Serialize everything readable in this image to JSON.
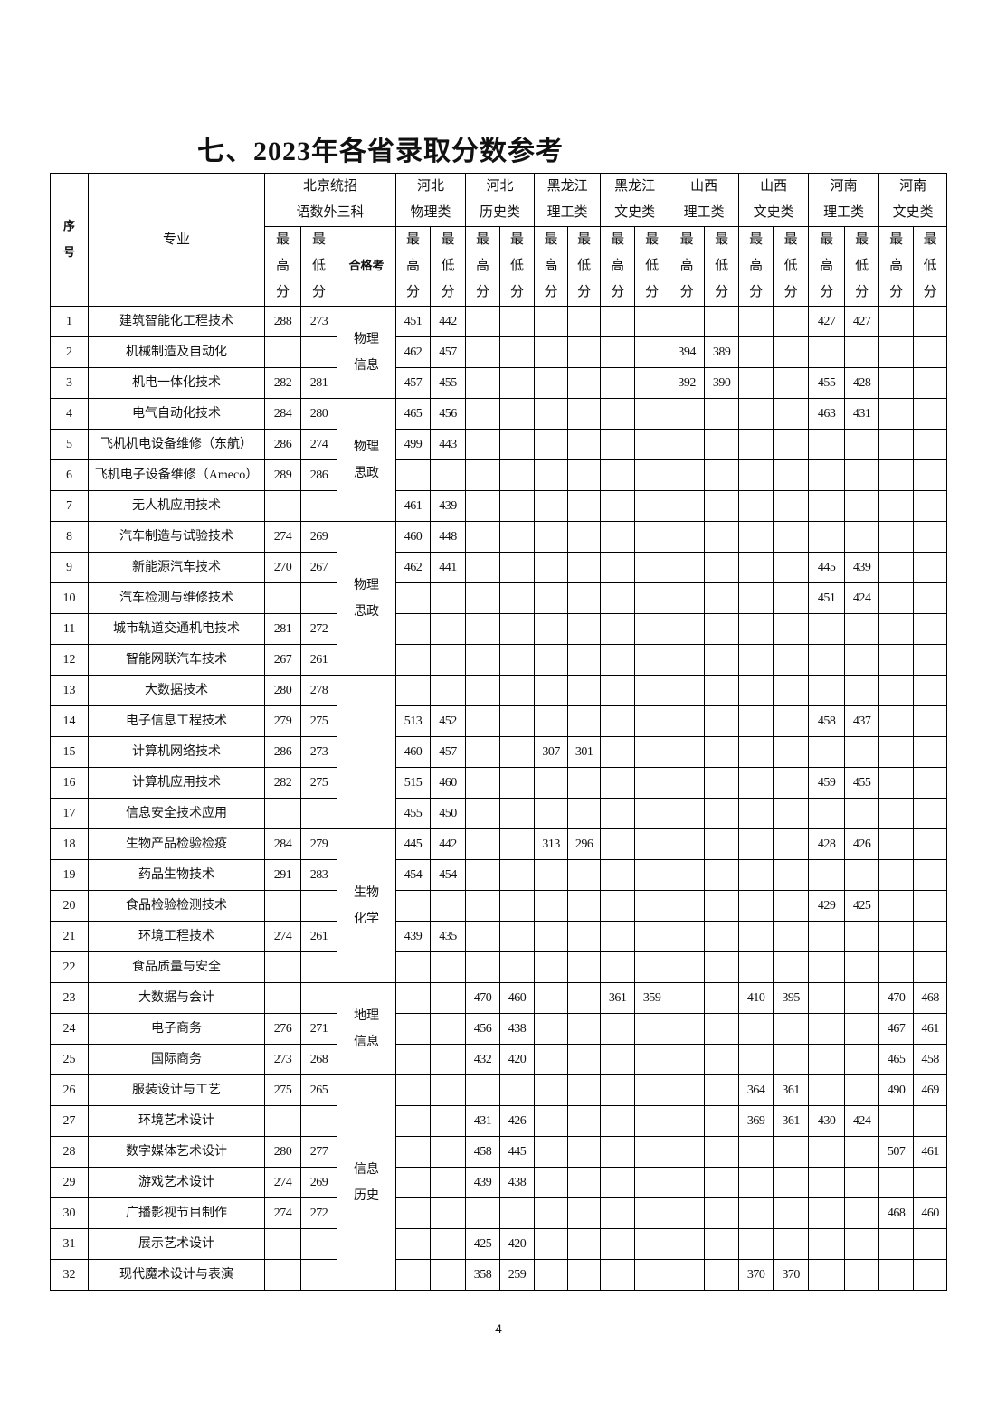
{
  "title": "七、2023年各省录取分数参考",
  "page_number": "4",
  "header": {
    "no": [
      "序",
      "号"
    ],
    "major": "专业",
    "beijing": [
      "北京统招",
      "语数外三科"
    ],
    "qualification": "合格考",
    "max_label": [
      "最",
      "高",
      "分"
    ],
    "min_label": [
      "最",
      "低",
      "分"
    ],
    "provinces": [
      [
        "河北",
        "物理类"
      ],
      [
        "河北",
        "历史类"
      ],
      [
        "黑龙江",
        "理工类"
      ],
      [
        "黑龙江",
        "文史类"
      ],
      [
        "山西",
        "理工类"
      ],
      [
        "山西",
        "文史类"
      ],
      [
        "河南",
        "理工类"
      ],
      [
        "河南",
        "文史类"
      ]
    ]
  },
  "qual_groups": [
    {
      "lines": [
        "物理",
        "信息"
      ],
      "rows": 3
    },
    {
      "lines": [
        "物理",
        "思政"
      ],
      "rows": 4
    },
    {
      "lines": [
        "物理",
        "思政"
      ],
      "rows": 5
    },
    {
      "lines": [],
      "rows": 5
    },
    {
      "lines": [
        "生物",
        "化学"
      ],
      "rows": 5
    },
    {
      "lines": [
        "地理",
        "信息"
      ],
      "rows": 3
    },
    {
      "lines": [
        "信息",
        "历史"
      ],
      "rows": 7
    }
  ],
  "rows": [
    {
      "no": "1",
      "major": "建筑智能化工程技术",
      "scores": [
        "288",
        "273",
        "451",
        "442",
        "",
        "",
        "",
        "",
        "",
        "",
        "",
        "",
        "",
        "",
        "427",
        "427",
        "",
        ""
      ]
    },
    {
      "no": "2",
      "major": "机械制造及自动化",
      "scores": [
        "",
        "",
        "462",
        "457",
        "",
        "",
        "",
        "",
        "",
        "",
        "394",
        "389",
        "",
        "",
        "",
        "",
        "",
        ""
      ]
    },
    {
      "no": "3",
      "major": "机电一体化技术",
      "scores": [
        "282",
        "281",
        "457",
        "455",
        "",
        "",
        "",
        "",
        "",
        "",
        "392",
        "390",
        "",
        "",
        "455",
        "428",
        "",
        ""
      ]
    },
    {
      "no": "4",
      "major": "电气自动化技术",
      "scores": [
        "284",
        "280",
        "465",
        "456",
        "",
        "",
        "",
        "",
        "",
        "",
        "",
        "",
        "",
        "",
        "463",
        "431",
        "",
        ""
      ]
    },
    {
      "no": "5",
      "major": "飞机机电设备维修（东航）",
      "scores": [
        "286",
        "274",
        "499",
        "443",
        "",
        "",
        "",
        "",
        "",
        "",
        "",
        "",
        "",
        "",
        "",
        "",
        "",
        ""
      ]
    },
    {
      "no": "6",
      "major": "飞机电子设备维修（Ameco）",
      "scores": [
        "289",
        "286",
        "",
        "",
        "",
        "",
        "",
        "",
        "",
        "",
        "",
        "",
        "",
        "",
        "",
        "",
        "",
        ""
      ]
    },
    {
      "no": "7",
      "major": "无人机应用技术",
      "scores": [
        "",
        "",
        "461",
        "439",
        "",
        "",
        "",
        "",
        "",
        "",
        "",
        "",
        "",
        "",
        "",
        "",
        "",
        ""
      ]
    },
    {
      "no": "8",
      "major": "汽车制造与试验技术",
      "scores": [
        "274",
        "269",
        "460",
        "448",
        "",
        "",
        "",
        "",
        "",
        "",
        "",
        "",
        "",
        "",
        "",
        "",
        "",
        ""
      ]
    },
    {
      "no": "9",
      "major": "新能源汽车技术",
      "scores": [
        "270",
        "267",
        "462",
        "441",
        "",
        "",
        "",
        "",
        "",
        "",
        "",
        "",
        "",
        "",
        "445",
        "439",
        "",
        ""
      ]
    },
    {
      "no": "10",
      "major": "汽车检测与维修技术",
      "scores": [
        "",
        "",
        "",
        "",
        "",
        "",
        "",
        "",
        "",
        "",
        "",
        "",
        "",
        "",
        "451",
        "424",
        "",
        ""
      ]
    },
    {
      "no": "11",
      "major": "城市轨道交通机电技术",
      "scores": [
        "281",
        "272",
        "",
        "",
        "",
        "",
        "",
        "",
        "",
        "",
        "",
        "",
        "",
        "",
        "",
        "",
        "",
        ""
      ]
    },
    {
      "no": "12",
      "major": "智能网联汽车技术",
      "scores": [
        "267",
        "261",
        "",
        "",
        "",
        "",
        "",
        "",
        "",
        "",
        "",
        "",
        "",
        "",
        "",
        "",
        "",
        ""
      ]
    },
    {
      "no": "13",
      "major": "大数据技术",
      "scores": [
        "280",
        "278",
        "",
        "",
        "",
        "",
        "",
        "",
        "",
        "",
        "",
        "",
        "",
        "",
        "",
        "",
        "",
        ""
      ]
    },
    {
      "no": "14",
      "major": "电子信息工程技术",
      "scores": [
        "279",
        "275",
        "513",
        "452",
        "",
        "",
        "",
        "",
        "",
        "",
        "",
        "",
        "",
        "",
        "458",
        "437",
        "",
        ""
      ]
    },
    {
      "no": "15",
      "major": "计算机网络技术",
      "scores": [
        "286",
        "273",
        "460",
        "457",
        "",
        "",
        "307",
        "301",
        "",
        "",
        "",
        "",
        "",
        "",
        "",
        "",
        "",
        ""
      ]
    },
    {
      "no": "16",
      "major": "计算机应用技术",
      "scores": [
        "282",
        "275",
        "515",
        "460",
        "",
        "",
        "",
        "",
        "",
        "",
        "",
        "",
        "",
        "",
        "459",
        "455",
        "",
        ""
      ]
    },
    {
      "no": "17",
      "major": "信息安全技术应用",
      "scores": [
        "",
        "",
        "455",
        "450",
        "",
        "",
        "",
        "",
        "",
        "",
        "",
        "",
        "",
        "",
        "",
        "",
        "",
        ""
      ]
    },
    {
      "no": "18",
      "major": "生物产品检验检疫",
      "scores": [
        "284",
        "279",
        "445",
        "442",
        "",
        "",
        "313",
        "296",
        "",
        "",
        "",
        "",
        "",
        "",
        "428",
        "426",
        "",
        ""
      ]
    },
    {
      "no": "19",
      "major": "药品生物技术",
      "scores": [
        "291",
        "283",
        "454",
        "454",
        "",
        "",
        "",
        "",
        "",
        "",
        "",
        "",
        "",
        "",
        "",
        "",
        "",
        ""
      ]
    },
    {
      "no": "20",
      "major": "食品检验检测技术",
      "scores": [
        "",
        "",
        "",
        "",
        "",
        "",
        "",
        "",
        "",
        "",
        "",
        "",
        "",
        "",
        "429",
        "425",
        "",
        ""
      ]
    },
    {
      "no": "21",
      "major": "环境工程技术",
      "scores": [
        "274",
        "261",
        "439",
        "435",
        "",
        "",
        "",
        "",
        "",
        "",
        "",
        "",
        "",
        "",
        "",
        "",
        "",
        ""
      ]
    },
    {
      "no": "22",
      "major": "食品质量与安全",
      "scores": [
        "",
        "",
        "",
        "",
        "",
        "",
        "",
        "",
        "",
        "",
        "",
        "",
        "",
        "",
        "",
        "",
        "",
        ""
      ]
    },
    {
      "no": "23",
      "major": "大数据与会计",
      "scores": [
        "",
        "",
        "",
        "",
        "470",
        "460",
        "",
        "",
        "361",
        "359",
        "",
        "",
        "410",
        "395",
        "",
        "",
        "470",
        "468"
      ]
    },
    {
      "no": "24",
      "major": "电子商务",
      "scores": [
        "276",
        "271",
        "",
        "",
        "456",
        "438",
        "",
        "",
        "",
        "",
        "",
        "",
        "",
        "",
        "",
        "",
        "467",
        "461"
      ]
    },
    {
      "no": "25",
      "major": "国际商务",
      "scores": [
        "273",
        "268",
        "",
        "",
        "432",
        "420",
        "",
        "",
        "",
        "",
        "",
        "",
        "",
        "",
        "",
        "",
        "465",
        "458"
      ]
    },
    {
      "no": "26",
      "major": "服装设计与工艺",
      "scores": [
        "275",
        "265",
        "",
        "",
        "",
        "",
        "",
        "",
        "",
        "",
        "",
        "",
        "364",
        "361",
        "",
        "",
        "490",
        "469"
      ]
    },
    {
      "no": "27",
      "major": "环境艺术设计",
      "scores": [
        "",
        "",
        "",
        "",
        "431",
        "426",
        "",
        "",
        "",
        "",
        "",
        "",
        "369",
        "361",
        "430",
        "424",
        "",
        ""
      ]
    },
    {
      "no": "28",
      "major": "数字媒体艺术设计",
      "scores": [
        "280",
        "277",
        "",
        "",
        "458",
        "445",
        "",
        "",
        "",
        "",
        "",
        "",
        "",
        "",
        "",
        "",
        "507",
        "461"
      ]
    },
    {
      "no": "29",
      "major": "游戏艺术设计",
      "scores": [
        "274",
        "269",
        "",
        "",
        "439",
        "438",
        "",
        "",
        "",
        "",
        "",
        "",
        "",
        "",
        "",
        "",
        "",
        ""
      ]
    },
    {
      "no": "30",
      "major": "广播影视节目制作",
      "scores": [
        "274",
        "272",
        "",
        "",
        "",
        "",
        "",
        "",
        "",
        "",
        "",
        "",
        "",
        "",
        "",
        "",
        "468",
        "460"
      ]
    },
    {
      "no": "31",
      "major": "展示艺术设计",
      "scores": [
        "",
        "",
        "",
        "",
        "425",
        "420",
        "",
        "",
        "",
        "",
        "",
        "",
        "",
        "",
        "",
        "",
        "",
        ""
      ]
    },
    {
      "no": "32",
      "major": "现代魔术设计与表演",
      "scores": [
        "",
        "",
        "",
        "",
        "358",
        "259",
        "",
        "",
        "",
        "",
        "",
        "",
        "370",
        "370",
        "",
        "",
        "",
        ""
      ]
    }
  ]
}
